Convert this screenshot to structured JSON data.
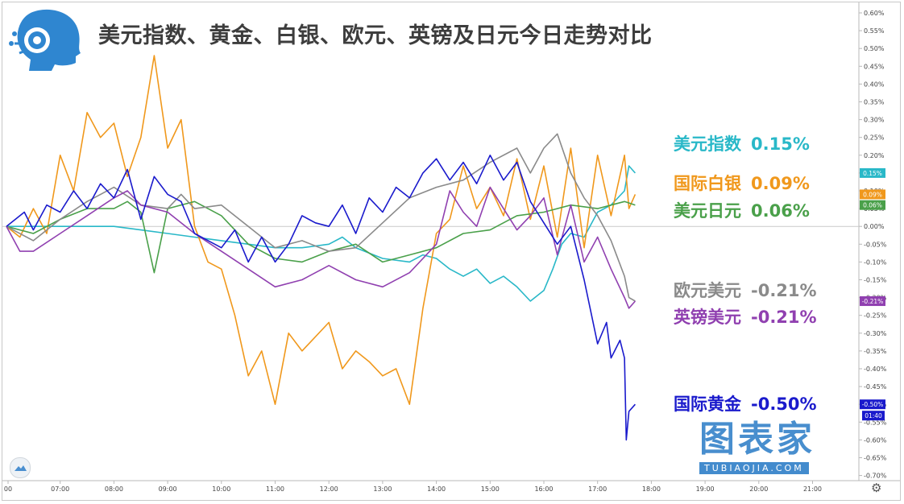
{
  "title": "美元指数、黄金、白银、欧元、英镑及日元今日走势对比",
  "watermark": {
    "cn": "图表家",
    "en": "TUBIAOJIA.COM"
  },
  "logo_icon": "robot-head-icon",
  "toolbar_icon": "tradingview-cloud-icon",
  "settings_icon": "gear-icon",
  "time_label": "01:40",
  "chart_data": {
    "type": "line",
    "xlabel": "",
    "ylabel": "",
    "x_range": [
      "06:00",
      "22:00"
    ],
    "y_range": [
      -0.7,
      0.6
    ],
    "x_ticks": [
      "00",
      "07:00",
      "08:00",
      "09:00",
      "10:00",
      "11:00",
      "12:00",
      "13:00",
      "14:00",
      "15:00",
      "16:00",
      "17:00",
      "18:00",
      "19:00",
      "20:00",
      "21:00"
    ],
    "y_ticks": [
      "0.60%",
      "0.55%",
      "0.50%",
      "0.45%",
      "0.40%",
      "0.35%",
      "0.30%",
      "0.25%",
      "0.20%",
      "0.15%",
      "0.10%",
      "0.05%",
      "0.00%",
      "-0.05%",
      "-0.10%",
      "-0.15%",
      "-0.20%",
      "-0.25%",
      "-0.30%",
      "-0.35%",
      "-0.40%",
      "-0.45%",
      "-0.50%",
      "-0.55%",
      "-0.60%",
      "-0.65%",
      "-0.70%"
    ],
    "zero_line": true,
    "series": [
      {
        "name": "美元指数",
        "value_label": "0.15%",
        "color": "#29b8c8",
        "badge": "0.15%",
        "points": [
          [
            "06:00",
            0.0
          ],
          [
            "06:30",
            0.0
          ],
          [
            "07:00",
            0.0
          ],
          [
            "07:30",
            0.0
          ],
          [
            "08:00",
            0.0
          ],
          [
            "08:30",
            -0.01
          ],
          [
            "09:00",
            -0.02
          ],
          [
            "09:30",
            -0.03
          ],
          [
            "10:00",
            -0.04
          ],
          [
            "10:30",
            -0.05
          ],
          [
            "11:00",
            -0.06
          ],
          [
            "11:30",
            -0.06
          ],
          [
            "12:00",
            -0.05
          ],
          [
            "12:15",
            -0.03
          ],
          [
            "12:30",
            -0.06
          ],
          [
            "13:00",
            -0.09
          ],
          [
            "13:30",
            -0.1
          ],
          [
            "13:45",
            -0.08
          ],
          [
            "14:00",
            -0.09
          ],
          [
            "14:15",
            -0.12
          ],
          [
            "14:30",
            -0.14
          ],
          [
            "14:45",
            -0.12
          ],
          [
            "15:00",
            -0.16
          ],
          [
            "15:15",
            -0.14
          ],
          [
            "15:30",
            -0.17
          ],
          [
            "15:45",
            -0.21
          ],
          [
            "16:00",
            -0.18
          ],
          [
            "16:10",
            -0.12
          ],
          [
            "16:20",
            -0.05
          ],
          [
            "16:30",
            -0.02
          ],
          [
            "16:45",
            -0.03
          ],
          [
            "17:00",
            0.04
          ],
          [
            "17:15",
            0.06
          ],
          [
            "17:30",
            0.1
          ],
          [
            "17:35",
            0.17
          ],
          [
            "17:42",
            0.15
          ]
        ]
      },
      {
        "name": "国际白银",
        "value_label": "0.09%",
        "color": "#f0981c",
        "badge": "0.09%",
        "points": [
          [
            "06:00",
            0.0
          ],
          [
            "06:15",
            -0.03
          ],
          [
            "06:30",
            0.05
          ],
          [
            "06:45",
            -0.02
          ],
          [
            "07:00",
            0.2
          ],
          [
            "07:15",
            0.1
          ],
          [
            "07:30",
            0.32
          ],
          [
            "07:45",
            0.25
          ],
          [
            "08:00",
            0.29
          ],
          [
            "08:15",
            0.14
          ],
          [
            "08:30",
            0.25
          ],
          [
            "08:45",
            0.48
          ],
          [
            "09:00",
            0.22
          ],
          [
            "09:15",
            0.3
          ],
          [
            "09:30",
            0.0
          ],
          [
            "09:45",
            -0.1
          ],
          [
            "10:00",
            -0.12
          ],
          [
            "10:15",
            -0.25
          ],
          [
            "10:30",
            -0.42
          ],
          [
            "10:45",
            -0.35
          ],
          [
            "11:00",
            -0.5
          ],
          [
            "11:15",
            -0.3
          ],
          [
            "11:30",
            -0.35
          ],
          [
            "12:00",
            -0.27
          ],
          [
            "12:15",
            -0.4
          ],
          [
            "12:30",
            -0.35
          ],
          [
            "12:45",
            -0.38
          ],
          [
            "13:00",
            -0.42
          ],
          [
            "13:15",
            -0.4
          ],
          [
            "13:30",
            -0.5
          ],
          [
            "13:45",
            -0.23
          ],
          [
            "14:00",
            -0.02
          ],
          [
            "14:15",
            0.02
          ],
          [
            "14:30",
            0.17
          ],
          [
            "14:45",
            0.05
          ],
          [
            "15:00",
            0.11
          ],
          [
            "15:15",
            0.03
          ],
          [
            "15:30",
            0.19
          ],
          [
            "15:45",
            0.02
          ],
          [
            "16:00",
            0.17
          ],
          [
            "16:15",
            -0.03
          ],
          [
            "16:30",
            0.22
          ],
          [
            "16:45",
            -0.06
          ],
          [
            "17:00",
            0.2
          ],
          [
            "17:15",
            0.03
          ],
          [
            "17:30",
            0.2
          ],
          [
            "17:35",
            0.05
          ],
          [
            "17:42",
            0.09
          ]
        ]
      },
      {
        "name": "美元日元",
        "value_label": "0.06%",
        "color": "#4aa04a",
        "badge": "0.06%",
        "points": [
          [
            "06:00",
            0.0
          ],
          [
            "06:30",
            -0.02
          ],
          [
            "07:00",
            0.02
          ],
          [
            "07:30",
            0.05
          ],
          [
            "08:00",
            0.05
          ],
          [
            "08:15",
            0.07
          ],
          [
            "08:30",
            0.04
          ],
          [
            "08:45",
            -0.13
          ],
          [
            "09:00",
            0.05
          ],
          [
            "09:30",
            0.07
          ],
          [
            "10:00",
            0.03
          ],
          [
            "10:30",
            -0.05
          ],
          [
            "11:00",
            -0.09
          ],
          [
            "11:30",
            -0.1
          ],
          [
            "12:00",
            -0.07
          ],
          [
            "12:30",
            -0.05
          ],
          [
            "13:00",
            -0.1
          ],
          [
            "13:30",
            -0.08
          ],
          [
            "14:00",
            -0.06
          ],
          [
            "14:30",
            -0.02
          ],
          [
            "15:00",
            -0.01
          ],
          [
            "15:30",
            0.03
          ],
          [
            "16:00",
            0.04
          ],
          [
            "16:30",
            0.06
          ],
          [
            "17:00",
            0.05
          ],
          [
            "17:30",
            0.07
          ],
          [
            "17:42",
            0.06
          ]
        ]
      },
      {
        "name": "欧元美元",
        "value_label": "-0.21%",
        "color": "#8a8a8a",
        "badge": "-0.21%",
        "points": [
          [
            "06:00",
            0.0
          ],
          [
            "06:30",
            -0.04
          ],
          [
            "07:00",
            0.02
          ],
          [
            "07:30",
            0.07
          ],
          [
            "08:00",
            0.11
          ],
          [
            "08:30",
            0.06
          ],
          [
            "09:00",
            0.05
          ],
          [
            "09:15",
            0.09
          ],
          [
            "09:30",
            0.05
          ],
          [
            "10:00",
            0.06
          ],
          [
            "10:30",
            0.0
          ],
          [
            "11:00",
            -0.06
          ],
          [
            "11:30",
            -0.04
          ],
          [
            "12:00",
            -0.07
          ],
          [
            "12:30",
            -0.06
          ],
          [
            "13:00",
            0.01
          ],
          [
            "13:30",
            0.08
          ],
          [
            "14:00",
            0.11
          ],
          [
            "14:30",
            0.13
          ],
          [
            "15:00",
            0.18
          ],
          [
            "15:30",
            0.22
          ],
          [
            "15:45",
            0.15
          ],
          [
            "16:00",
            0.22
          ],
          [
            "16:15",
            0.26
          ],
          [
            "16:30",
            0.15
          ],
          [
            "16:45",
            0.08
          ],
          [
            "17:00",
            0.03
          ],
          [
            "17:15",
            -0.04
          ],
          [
            "17:30",
            -0.14
          ],
          [
            "17:35",
            -0.2
          ],
          [
            "17:42",
            -0.21
          ]
        ]
      },
      {
        "name": "英镑美元",
        "value_label": "-0.21%",
        "color": "#9040b0",
        "badge": "-0.21%",
        "points": [
          [
            "06:00",
            0.0
          ],
          [
            "06:15",
            -0.07
          ],
          [
            "06:30",
            -0.07
          ],
          [
            "07:00",
            -0.02
          ],
          [
            "07:30",
            0.03
          ],
          [
            "08:00",
            0.08
          ],
          [
            "08:15",
            0.1
          ],
          [
            "08:30",
            0.06
          ],
          [
            "09:00",
            0.04
          ],
          [
            "09:30",
            -0.02
          ],
          [
            "10:00",
            -0.07
          ],
          [
            "10:30",
            -0.12
          ],
          [
            "11:00",
            -0.17
          ],
          [
            "11:30",
            -0.15
          ],
          [
            "12:00",
            -0.11
          ],
          [
            "12:30",
            -0.15
          ],
          [
            "13:00",
            -0.17
          ],
          [
            "13:30",
            -0.13
          ],
          [
            "14:00",
            -0.05
          ],
          [
            "14:15",
            0.1
          ],
          [
            "14:30",
            0.04
          ],
          [
            "14:45",
            0.0
          ],
          [
            "15:00",
            0.11
          ],
          [
            "15:30",
            -0.01
          ],
          [
            "15:45",
            0.03
          ],
          [
            "16:00",
            0.08
          ],
          [
            "16:15",
            -0.08
          ],
          [
            "16:30",
            0.06
          ],
          [
            "16:45",
            -0.1
          ],
          [
            "17:00",
            -0.03
          ],
          [
            "17:15",
            -0.12
          ],
          [
            "17:30",
            -0.2
          ],
          [
            "17:35",
            -0.23
          ],
          [
            "17:42",
            -0.21
          ]
        ]
      },
      {
        "name": "国际黄金",
        "value_label": "-0.50%",
        "color": "#1a1acc",
        "badge": "-0.50%",
        "points": [
          [
            "06:00",
            0.0
          ],
          [
            "06:20",
            0.04
          ],
          [
            "06:30",
            -0.01
          ],
          [
            "06:45",
            0.06
          ],
          [
            "07:00",
            0.04
          ],
          [
            "07:15",
            0.1
          ],
          [
            "07:30",
            0.05
          ],
          [
            "07:45",
            0.12
          ],
          [
            "08:00",
            0.08
          ],
          [
            "08:15",
            0.16
          ],
          [
            "08:30",
            0.02
          ],
          [
            "08:45",
            0.14
          ],
          [
            "09:00",
            0.09
          ],
          [
            "09:15",
            0.07
          ],
          [
            "09:30",
            -0.02
          ],
          [
            "10:00",
            -0.06
          ],
          [
            "10:15",
            -0.01
          ],
          [
            "10:30",
            -0.1
          ],
          [
            "10:45",
            -0.03
          ],
          [
            "11:00",
            -0.1
          ],
          [
            "11:15",
            -0.05
          ],
          [
            "11:30",
            0.03
          ],
          [
            "11:45",
            0.01
          ],
          [
            "12:00",
            0.0
          ],
          [
            "12:15",
            0.06
          ],
          [
            "12:30",
            -0.02
          ],
          [
            "12:45",
            0.08
          ],
          [
            "13:00",
            0.04
          ],
          [
            "13:15",
            0.11
          ],
          [
            "13:30",
            0.08
          ],
          [
            "13:45",
            0.15
          ],
          [
            "14:00",
            0.19
          ],
          [
            "14:15",
            0.13
          ],
          [
            "14:30",
            0.18
          ],
          [
            "14:45",
            0.12
          ],
          [
            "15:00",
            0.2
          ],
          [
            "15:15",
            0.13
          ],
          [
            "15:30",
            0.18
          ],
          [
            "15:45",
            0.07
          ],
          [
            "16:00",
            0.01
          ],
          [
            "16:15",
            -0.05
          ],
          [
            "16:30",
            0.0
          ],
          [
            "16:45",
            -0.15
          ],
          [
            "17:00",
            -0.33
          ],
          [
            "17:10",
            -0.27
          ],
          [
            "17:15",
            -0.37
          ],
          [
            "17:25",
            -0.32
          ],
          [
            "17:30",
            -0.37
          ],
          [
            "17:32",
            -0.6
          ],
          [
            "17:35",
            -0.52
          ],
          [
            "17:42",
            -0.5
          ]
        ]
      }
    ]
  }
}
